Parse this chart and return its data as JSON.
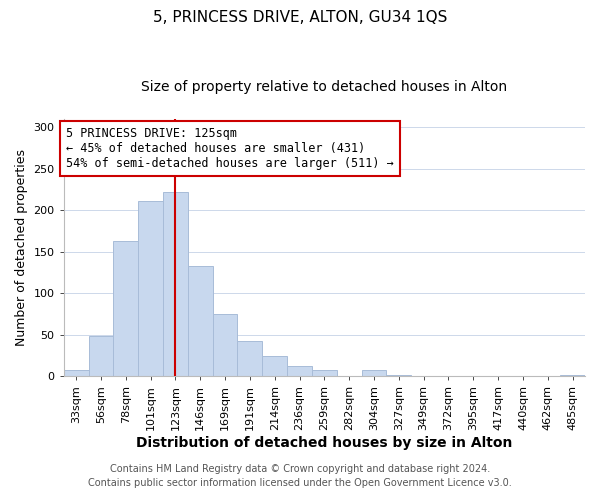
{
  "title": "5, PRINCESS DRIVE, ALTON, GU34 1QS",
  "subtitle": "Size of property relative to detached houses in Alton",
  "xlabel": "Distribution of detached houses by size in Alton",
  "ylabel": "Number of detached properties",
  "bar_labels": [
    "33sqm",
    "56sqm",
    "78sqm",
    "101sqm",
    "123sqm",
    "146sqm",
    "169sqm",
    "191sqm",
    "214sqm",
    "236sqm",
    "259sqm",
    "282sqm",
    "304sqm",
    "327sqm",
    "349sqm",
    "372sqm",
    "395sqm",
    "417sqm",
    "440sqm",
    "462sqm",
    "485sqm"
  ],
  "bar_heights": [
    7,
    49,
    163,
    211,
    222,
    133,
    75,
    43,
    25,
    12,
    8,
    0,
    8,
    2,
    0,
    0,
    0,
    0,
    0,
    0,
    2
  ],
  "bar_color": "#c8d8ee",
  "bar_edge_color": "#a8bcd8",
  "vline_color": "#cc0000",
  "annotation_line1": "5 PRINCESS DRIVE: 125sqm",
  "annotation_line2": "← 45% of detached houses are smaller (431)",
  "annotation_line3": "54% of semi-detached houses are larger (511) →",
  "annotation_box_color": "white",
  "annotation_box_edge": "#cc0000",
  "ylim": [
    0,
    310
  ],
  "yticks": [
    0,
    50,
    100,
    150,
    200,
    250,
    300
  ],
  "footer1": "Contains HM Land Registry data © Crown copyright and database right 2024.",
  "footer2": "Contains public sector information licensed under the Open Government Licence v3.0.",
  "title_fontsize": 11,
  "subtitle_fontsize": 10,
  "xlabel_fontsize": 10,
  "ylabel_fontsize": 9,
  "tick_fontsize": 8,
  "annotation_fontsize": 8.5,
  "footer_fontsize": 7
}
